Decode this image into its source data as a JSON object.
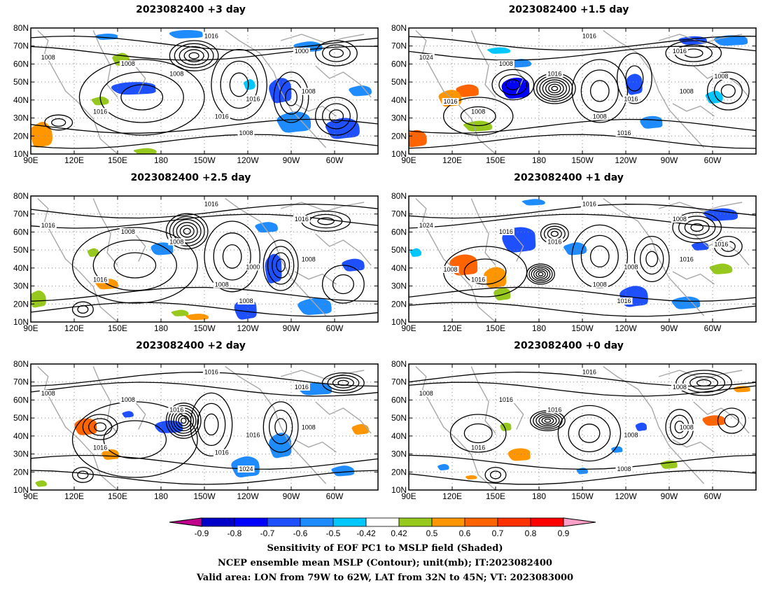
{
  "panels": [
    {
      "id": "p0",
      "title": "2023082400 +3 day"
    },
    {
      "id": "p1",
      "title": "2023082400 +1.5 day"
    },
    {
      "id": "p2",
      "title": "2023082400 +2.5 day"
    },
    {
      "id": "p3",
      "title": "2023082400 +1 day"
    },
    {
      "id": "p4",
      "title": "2023082400 +2 day"
    },
    {
      "id": "p5",
      "title": "2023082400 +0 day"
    }
  ],
  "axes": {
    "lat_labels": [
      "80N",
      "70N",
      "60N",
      "50N",
      "40N",
      "30N",
      "20N",
      "10N"
    ],
    "lon_labels": [
      "90E",
      "120E",
      "150E",
      "180",
      "150W",
      "120W",
      "90W",
      "60W"
    ]
  },
  "contour_labels": {
    "p0": [
      "1016",
      "1008",
      "1000",
      "1008",
      "1016",
      "1008",
      "1016",
      "1008",
      "1008",
      "1016"
    ],
    "p1": [
      "1016",
      "1008",
      "1016",
      "1016",
      "1016",
      "1008",
      "1008",
      "1016",
      "1024",
      "1008",
      "1016",
      "1008"
    ],
    "p2": [
      "1016",
      "1008",
      "1016",
      "1008",
      "1000",
      "1008",
      "1016",
      "1008",
      "1016",
      "1008"
    ],
    "p3": [
      "1016",
      "1016",
      "1008",
      "1016",
      "1008",
      "1016",
      "1016",
      "1016",
      "1024",
      "1008",
      "1008",
      "1016"
    ],
    "p4": [
      "1016",
      "1008",
      "1016",
      "1016",
      "1016",
      "1008",
      "1016",
      "1024",
      "1008",
      "1016"
    ],
    "p5": [
      "1016",
      "1016",
      "1008",
      "1016",
      "1008",
      "1008",
      "1016",
      "1008",
      "1008"
    ]
  },
  "colorbar": {
    "ticks": [
      "-0.9",
      "-0.8",
      "-0.7",
      "-0.6",
      "-0.5",
      "-0.42",
      "0.42",
      "0.5",
      "0.6",
      "0.7",
      "0.8",
      "0.9"
    ],
    "colors": [
      "#c0008c",
      "#0000c8",
      "#0000ff",
      "#1e50ff",
      "#1e8cff",
      "#00c8ff",
      "#ffffff",
      "#96c81e",
      "#ff9600",
      "#ff6400",
      "#ff3200",
      "#ff0000",
      "#ffa0c8"
    ]
  },
  "captions": [
    "Sensitivity of EOF PC1 to MSLP field (Shaded)",
    "NCEP ensemble mean MSLP (Contour); unit(mb); IT:2023082400",
    "Valid area: LON from 79W to 62W, LAT from 32N to 45N; VT: 2023083000"
  ]
}
